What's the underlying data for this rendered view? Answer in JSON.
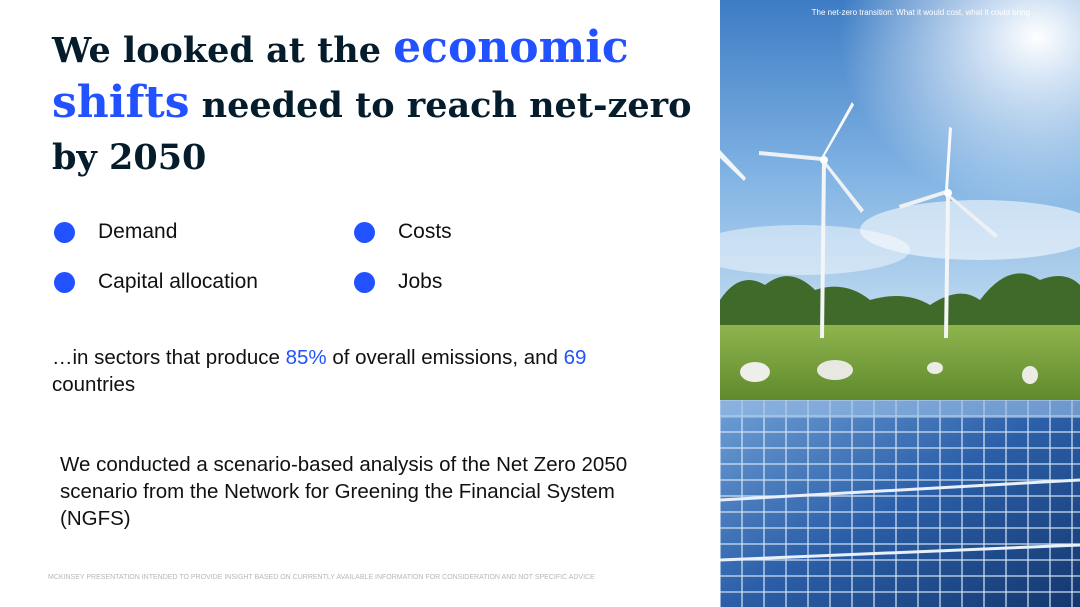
{
  "title": {
    "part1": "We looked at the ",
    "accent1": "economic",
    "accent2": "shifts",
    "part2": " needed to reach net-zero by 2050"
  },
  "bullets": [
    {
      "label": "Demand"
    },
    {
      "label": "Costs"
    },
    {
      "label": "Capital allocation"
    },
    {
      "label": "Jobs"
    }
  ],
  "sectors": {
    "prefix": "…in sectors that produce ",
    "percent": "85%",
    "middle": " of overall emissions, and ",
    "countries_count": "69",
    "suffix": " countries"
  },
  "analysis": "We conducted a scenario-based analysis of the Net Zero 2050 scenario from the Network for Greening the Financial System (NGFS)",
  "disclaimer": "McKinsey presentation intended to provide insight based on currently available information for consideration and not specific advice",
  "photo": {
    "caption": "The net-zero transition: What it would cost, what it could bring",
    "icon": "wind-turbines-solar-panels-photo"
  },
  "colors": {
    "accent": "#2251ff",
    "title_text": "#051c2c",
    "body_text": "#111111"
  }
}
